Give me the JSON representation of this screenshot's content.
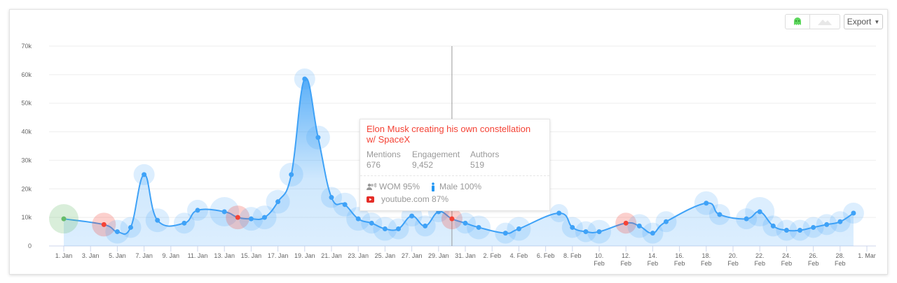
{
  "toolbar": {
    "export_label": "Export",
    "view_icons": [
      "bubble-view-icon",
      "area-view-icon"
    ],
    "active_view_color": "#5cd65c"
  },
  "tooltip": {
    "title": "Elon Musk creating his own constellation w/ SpaceX",
    "stats": [
      {
        "label": "Mentions",
        "value": "676"
      },
      {
        "label": "Engagement",
        "value": "9,452"
      },
      {
        "label": "Authors",
        "value": "519"
      }
    ],
    "wom": "WOM 95%",
    "gender": "Male 100%",
    "source": "youtube.com 87%",
    "date": "30. Jan"
  },
  "chart_data": {
    "type": "area",
    "line_color": "#3fa2f7",
    "colors": {
      "normal": "#3fa2f7",
      "negative": "#f44336",
      "positive": "#66bb6a"
    },
    "ylim": [
      0,
      70000
    ],
    "yticks": [
      "0",
      "10k",
      "20k",
      "30k",
      "40k",
      "50k",
      "60k",
      "70k"
    ],
    "ytick_values": [
      0,
      10000,
      20000,
      30000,
      40000,
      50000,
      60000,
      70000
    ],
    "xlim": [
      "2020-01-01",
      "2020-03-01"
    ],
    "xticks": [
      "1. Jan",
      "3. Jan",
      "5. Jan",
      "7. Jan",
      "9. Jan",
      "11. Jan",
      "13. Jan",
      "15. Jan",
      "17. Jan",
      "19. Jan",
      "21. Jan",
      "23. Jan",
      "25. Jan",
      "27. Jan",
      "29. Jan",
      "31. Jan",
      "2. Feb",
      "4. Feb",
      "6. Feb",
      "8. Feb",
      "10. Feb",
      "12. Feb",
      "14. Feb",
      "16. Feb",
      "18. Feb",
      "20. Feb",
      "22. Feb",
      "24. Feb",
      "26. Feb",
      "28. Feb",
      "1. Mar"
    ],
    "grid": true,
    "crosshair_date": "2020-01-30",
    "points": [
      {
        "date": "2020-01-01",
        "value": 9500,
        "type": "positive",
        "bubble": 3
      },
      {
        "date": "2020-01-04",
        "value": 7500,
        "type": "negative",
        "bubble": 2
      },
      {
        "date": "2020-01-05",
        "value": 5000,
        "type": "normal",
        "bubble": 2
      },
      {
        "date": "2020-01-06",
        "value": 6500,
        "type": "normal",
        "bubble": 1.5
      },
      {
        "date": "2020-01-07",
        "value": 25000,
        "type": "normal",
        "bubble": 1.5
      },
      {
        "date": "2020-01-08",
        "value": 9000,
        "type": "normal",
        "bubble": 2
      },
      {
        "date": "2020-01-10",
        "value": 8000,
        "type": "normal",
        "bubble": 1.5
      },
      {
        "date": "2020-01-11",
        "value": 12500,
        "type": "normal",
        "bubble": 1.5
      },
      {
        "date": "2020-01-13",
        "value": 12000,
        "type": "normal",
        "bubble": 3
      },
      {
        "date": "2020-01-14",
        "value": 10000,
        "type": "negative",
        "bubble": 2
      },
      {
        "date": "2020-01-15",
        "value": 9500,
        "type": "normal",
        "bubble": 2
      },
      {
        "date": "2020-01-16",
        "value": 10000,
        "type": "normal",
        "bubble": 2
      },
      {
        "date": "2020-01-17",
        "value": 15500,
        "type": "normal",
        "bubble": 2
      },
      {
        "date": "2020-01-18",
        "value": 25000,
        "type": "normal",
        "bubble": 2
      },
      {
        "date": "2020-01-19",
        "value": 58500,
        "type": "normal",
        "bubble": 1.5
      },
      {
        "date": "2020-01-20",
        "value": 38000,
        "type": "normal",
        "bubble": 2
      },
      {
        "date": "2020-01-21",
        "value": 17000,
        "type": "normal",
        "bubble": 1.5
      },
      {
        "date": "2020-01-22",
        "value": 14500,
        "type": "normal",
        "bubble": 2
      },
      {
        "date": "2020-01-23",
        "value": 9500,
        "type": "normal",
        "bubble": 2
      },
      {
        "date": "2020-01-24",
        "value": 8000,
        "type": "normal",
        "bubble": 1.5
      },
      {
        "date": "2020-01-25",
        "value": 6000,
        "type": "normal",
        "bubble": 2
      },
      {
        "date": "2020-01-26",
        "value": 6000,
        "type": "normal",
        "bubble": 1.5
      },
      {
        "date": "2020-01-27",
        "value": 10500,
        "type": "normal",
        "bubble": 1.5
      },
      {
        "date": "2020-01-28",
        "value": 7000,
        "type": "normal",
        "bubble": 1.5
      },
      {
        "date": "2020-01-29",
        "value": 12000,
        "type": "normal",
        "bubble": 1.5
      },
      {
        "date": "2020-01-30",
        "value": 9500,
        "type": "negative",
        "bubble": 1.5
      },
      {
        "date": "2020-01-31",
        "value": 8000,
        "type": "normal",
        "bubble": 1.5
      },
      {
        "date": "2020-02-01",
        "value": 6500,
        "type": "normal",
        "bubble": 2
      },
      {
        "date": "2020-02-03",
        "value": 4500,
        "type": "normal",
        "bubble": 1.5
      },
      {
        "date": "2020-02-04",
        "value": 6000,
        "type": "normal",
        "bubble": 2
      },
      {
        "date": "2020-02-07",
        "value": 11500,
        "type": "normal",
        "bubble": 1
      },
      {
        "date": "2020-02-08",
        "value": 6500,
        "type": "normal",
        "bubble": 1.5
      },
      {
        "date": "2020-02-09",
        "value": 5000,
        "type": "normal",
        "bubble": 1.5
      },
      {
        "date": "2020-02-10",
        "value": 5000,
        "type": "normal",
        "bubble": 2
      },
      {
        "date": "2020-02-12",
        "value": 8000,
        "type": "negative",
        "bubble": 1.5
      },
      {
        "date": "2020-02-13",
        "value": 7000,
        "type": "normal",
        "bubble": 2
      },
      {
        "date": "2020-02-14",
        "value": 4500,
        "type": "normal",
        "bubble": 1.5
      },
      {
        "date": "2020-02-15",
        "value": 8500,
        "type": "normal",
        "bubble": 1.5
      },
      {
        "date": "2020-02-18",
        "value": 15000,
        "type": "normal",
        "bubble": 2
      },
      {
        "date": "2020-02-19",
        "value": 11000,
        "type": "normal",
        "bubble": 1.5
      },
      {
        "date": "2020-02-21",
        "value": 9500,
        "type": "normal",
        "bubble": 1.5
      },
      {
        "date": "2020-02-22",
        "value": 12000,
        "type": "normal",
        "bubble": 3
      },
      {
        "date": "2020-02-23",
        "value": 7000,
        "type": "normal",
        "bubble": 1.5
      },
      {
        "date": "2020-02-24",
        "value": 5500,
        "type": "normal",
        "bubble": 1.5
      },
      {
        "date": "2020-02-25",
        "value": 5500,
        "type": "normal",
        "bubble": 1.5
      },
      {
        "date": "2020-02-26",
        "value": 6500,
        "type": "normal",
        "bubble": 1.5
      },
      {
        "date": "2020-02-27",
        "value": 7500,
        "type": "normal",
        "bubble": 1.5
      },
      {
        "date": "2020-02-28",
        "value": 8500,
        "type": "normal",
        "bubble": 1.5
      },
      {
        "date": "2020-02-29",
        "value": 11500,
        "type": "normal",
        "bubble": 1.5
      }
    ]
  }
}
